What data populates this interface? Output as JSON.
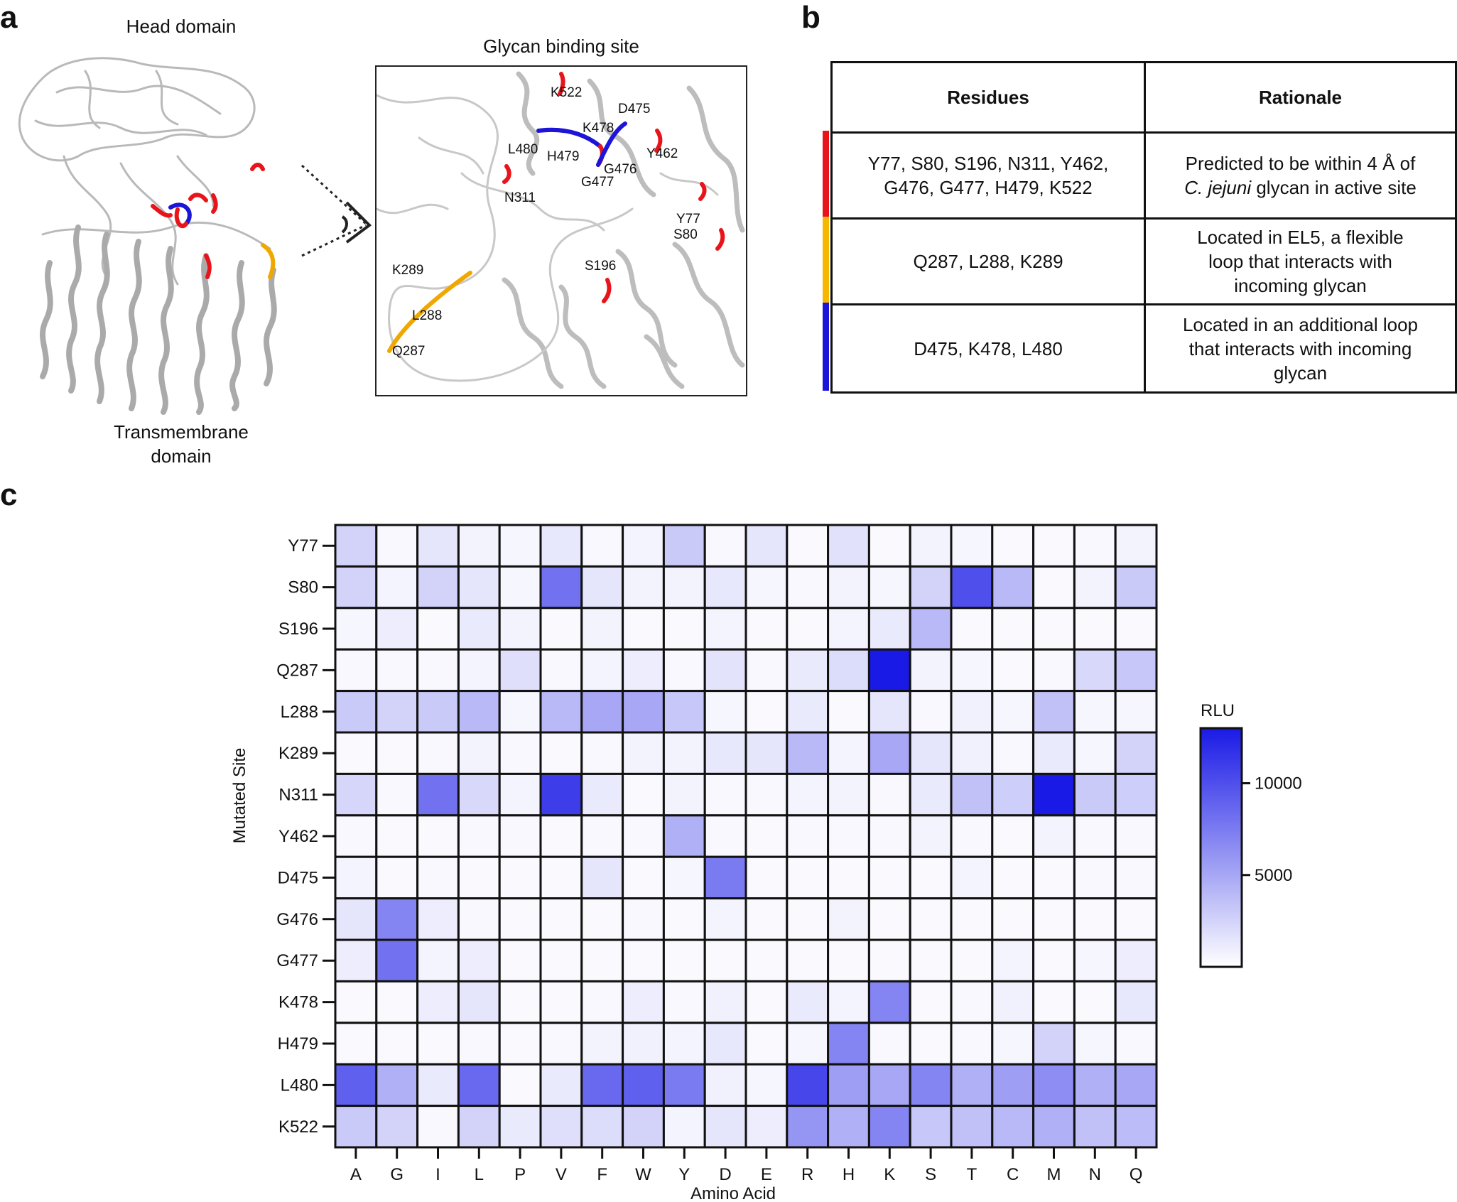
{
  "panel_a": {
    "letter": "a",
    "head_label": "Head domain",
    "tm_label_line1": "Transmembrane",
    "tm_label_line2": "domain",
    "zoom_title": "Glycan binding site",
    "zoom_labels": [
      "K522",
      "D475",
      "K478",
      "L480",
      "H479",
      "Y462",
      "G476",
      "G477",
      "N311",
      "Y77",
      "S80",
      "S196",
      "K289",
      "L288",
      "Q287"
    ]
  },
  "panel_b": {
    "letter": "b",
    "headers": [
      "Residues",
      "Rationale"
    ],
    "rows": [
      {
        "color": "#e8141b",
        "residues_1": "Y77, S80, S196, N311, Y462,",
        "residues_2": "G476, G477, H479, K522",
        "rationale_1": "Predicted to be within 4 Å of",
        "rationale_2_italic": "C. jejuni",
        "rationale_2_rest": " glycan in active site"
      },
      {
        "color": "#f7b600",
        "residues_1": "Q287, L288, K289",
        "residues_2": "",
        "rationale_1": "Located in EL5, a flexible",
        "rationale_2_italic": "",
        "rationale_2_rest": "loop that interacts with",
        "rationale_3": "incoming glycan"
      },
      {
        "color": "#1c14d6",
        "residues_1": "D475, K478, L480",
        "residues_2": "",
        "rationale_1": "Located in an additional loop",
        "rationale_2_italic": "",
        "rationale_2_rest": "that interacts with incoming",
        "rationale_3": "glycan"
      }
    ]
  },
  "panel_c": {
    "letter": "c",
    "chart_data": {
      "type": "heatmap",
      "xlabel": "Amino Acid",
      "ylabel": "Mutated Site",
      "x": [
        "A",
        "G",
        "I",
        "L",
        "P",
        "V",
        "F",
        "W",
        "Y",
        "D",
        "E",
        "R",
        "H",
        "K",
        "S",
        "T",
        "C",
        "M",
        "N",
        "Q"
      ],
      "y": [
        "Y77",
        "S80",
        "S196",
        "Q287",
        "L288",
        "K289",
        "N311",
        "Y462",
        "D475",
        "G476",
        "G477",
        "K478",
        "H479",
        "L480",
        "K522"
      ],
      "colorbar_title": "RLU",
      "colorbar_ticks": [
        5000,
        10000
      ],
      "color_range": [
        0,
        13000
      ],
      "color_low": "#ffffff",
      "color_high": "#1a1ae6",
      "values": [
        [
          2500,
          400,
          1500,
          700,
          500,
          1300,
          400,
          600,
          3000,
          400,
          1500,
          300,
          1700,
          300,
          700,
          500,
          300,
          300,
          400,
          700
        ],
        [
          2500,
          600,
          2500,
          1500,
          500,
          8000,
          1500,
          700,
          700,
          1300,
          500,
          400,
          700,
          500,
          2500,
          10000,
          4000,
          300,
          700,
          3000
        ],
        [
          500,
          1000,
          300,
          1200,
          700,
          300,
          700,
          300,
          300,
          600,
          300,
          300,
          600,
          1200,
          4000,
          300,
          300,
          300,
          300,
          300
        ],
        [
          400,
          400,
          400,
          600,
          1800,
          400,
          600,
          1000,
          400,
          1600,
          400,
          1200,
          2000,
          13000,
          700,
          500,
          300,
          400,
          2200,
          3200
        ],
        [
          3000,
          2500,
          3000,
          4000,
          500,
          4000,
          5000,
          5000,
          3200,
          500,
          300,
          1200,
          300,
          1500,
          400,
          800,
          500,
          3500,
          500,
          500
        ],
        [
          300,
          300,
          400,
          700,
          400,
          300,
          400,
          700,
          700,
          1300,
          1500,
          4000,
          600,
          5000,
          1500,
          800,
          400,
          1200,
          500,
          2500
        ],
        [
          2300,
          400,
          8000,
          2200,
          600,
          11000,
          1200,
          300,
          700,
          400,
          400,
          600,
          700,
          400,
          1200,
          3500,
          2800,
          14000,
          3000,
          2800
        ],
        [
          400,
          300,
          300,
          400,
          400,
          300,
          400,
          400,
          4500,
          400,
          300,
          400,
          400,
          400,
          700,
          400,
          300,
          700,
          400,
          400
        ],
        [
          600,
          300,
          400,
          300,
          300,
          300,
          1500,
          300,
          500,
          7500,
          300,
          300,
          300,
          300,
          300,
          600,
          300,
          300,
          400,
          400
        ],
        [
          1500,
          7000,
          1000,
          400,
          300,
          300,
          300,
          400,
          300,
          600,
          300,
          300,
          700,
          300,
          300,
          300,
          300,
          300,
          300,
          300
        ],
        [
          1000,
          8000,
          600,
          1000,
          300,
          300,
          300,
          300,
          300,
          300,
          300,
          300,
          300,
          300,
          300,
          300,
          600,
          300,
          500,
          1000
        ],
        [
          300,
          300,
          1000,
          1500,
          300,
          300,
          400,
          1000,
          400,
          800,
          300,
          1200,
          600,
          7000,
          300,
          400,
          800,
          300,
          300,
          1300
        ],
        [
          300,
          300,
          300,
          400,
          300,
          400,
          700,
          800,
          600,
          1300,
          300,
          500,
          7000,
          400,
          300,
          400,
          500,
          2500,
          500,
          400
        ],
        [
          9000,
          4500,
          1200,
          8500,
          300,
          1200,
          8500,
          9000,
          7500,
          800,
          500,
          10500,
          5500,
          5000,
          7000,
          4500,
          5500,
          6500,
          4500,
          5000
        ],
        [
          3000,
          2500,
          400,
          2500,
          1200,
          1800,
          2000,
          2500,
          600,
          1500,
          1000,
          6000,
          4500,
          7000,
          3200,
          3500,
          4000,
          4500,
          3500,
          3800
        ]
      ]
    }
  }
}
